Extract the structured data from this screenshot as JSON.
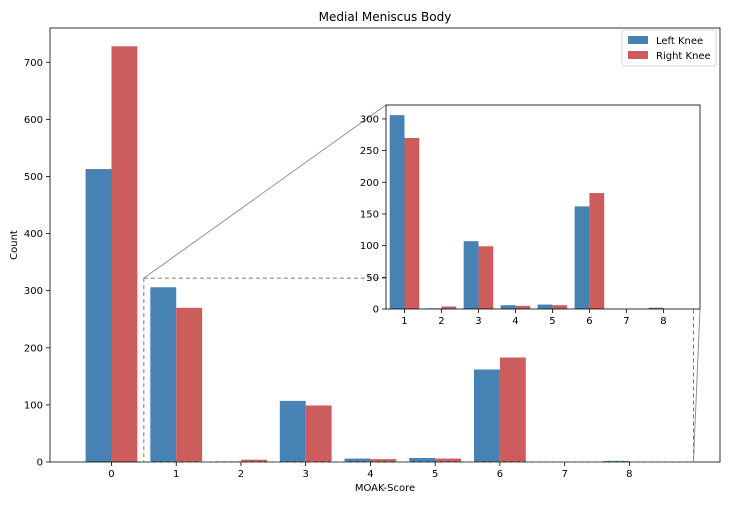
{
  "chart_data": {
    "type": "bar",
    "title": "Medial Meniscus Body",
    "xlabel": "MOAK-Score",
    "ylabel": "Count",
    "grid": false,
    "legend_position": "top-right",
    "series": [
      {
        "name": "Left Knee",
        "color": "#4682b4",
        "values": [
          513,
          306,
          1,
          107,
          6,
          7,
          162,
          0,
          2
        ]
      },
      {
        "name": "Right Knee",
        "color": "#cd5c5c",
        "values": [
          728,
          270,
          4,
          99,
          5,
          6,
          183,
          0,
          0
        ]
      }
    ],
    "categories": [
      "0",
      "1",
      "2",
      "3",
      "4",
      "5",
      "6",
      "7",
      "8"
    ],
    "ylim": [
      0,
      760
    ],
    "yticks": [
      "0",
      "100",
      "200",
      "300",
      "400",
      "500",
      "600",
      "700"
    ],
    "inset": {
      "categories": [
        "1",
        "2",
        "3",
        "4",
        "5",
        "6",
        "7",
        "8"
      ],
      "ylim": [
        0,
        322
      ],
      "yticks": [
        "0",
        "50",
        "100",
        "150",
        "200",
        "250",
        "300"
      ],
      "zoom_x_range": [
        0.5,
        8.99
      ],
      "zoom_y_range": [
        0,
        322
      ]
    }
  }
}
